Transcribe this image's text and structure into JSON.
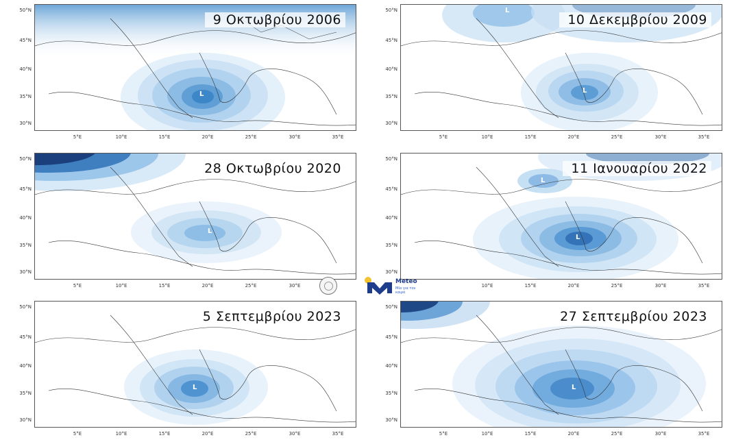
{
  "panels": [
    {
      "date": "9 Οκτωβρίου 2006",
      "low_label": "L"
    },
    {
      "date": "10 Δεκεμβρίου 2009",
      "low_label": "L"
    },
    {
      "date": "28 Οκτωβρίου 2020",
      "low_label": "L"
    },
    {
      "date": "11 Ιανουαρίου 2022",
      "low_label": "L"
    },
    {
      "date": "5 Σεπτεμβρίου 2023",
      "low_label": "L"
    },
    {
      "date": "27 Σεπτεμβρίου 2023",
      "low_label": "L"
    }
  ],
  "lat_labels": [
    "50°N",
    "45°N",
    "40°N",
    "35°N",
    "30°N"
  ],
  "lon_labels": [
    "5°E",
    "10°E",
    "15°E",
    "20°E",
    "25°E",
    "30°E",
    "35°E"
  ],
  "logos": {
    "meteo_name": "Meteo",
    "meteo_tagline": "Μία για τον καιρό"
  },
  "colors": {
    "contour_light": "#e4f0fa",
    "contour_mid": "#9cc8ea",
    "contour_dark": "#3a83c6",
    "contour_darkest": "#153f7f"
  }
}
